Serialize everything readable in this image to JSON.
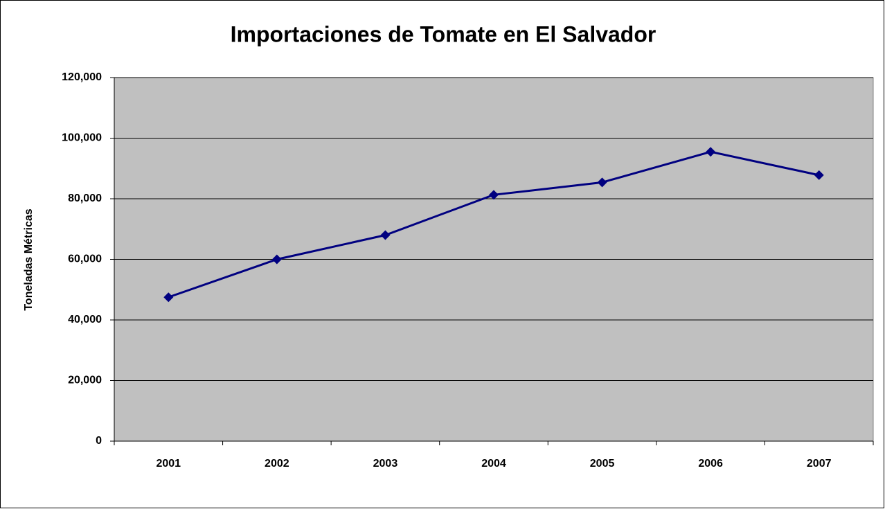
{
  "chart_data": {
    "type": "line",
    "title": "Importaciones de Tomate en El Salvador",
    "y_axis_label": "Toneladas Métricas",
    "categories": [
      "2001",
      "2002",
      "2003",
      "2004",
      "2005",
      "2006",
      "2007"
    ],
    "series": [
      {
        "name": "Importaciones",
        "color": "#000080",
        "values": [
          47500,
          60000,
          68000,
          81300,
          85400,
          95500,
          87800
        ]
      }
    ],
    "ylim": [
      0,
      120000
    ],
    "yticks": [
      0,
      {
        "value": 20000,
        "label": "20,000"
      },
      {
        "value": 40000,
        "label": "40,000"
      },
      {
        "value": 60000,
        "label": "60,000"
      },
      {
        "value": 80000,
        "label": "80,000"
      },
      {
        "value": 100000,
        "label": "100,000"
      },
      {
        "value": 120000,
        "label": "120,000"
      }
    ],
    "grid": true,
    "plot_background": "#c0c0c0"
  }
}
